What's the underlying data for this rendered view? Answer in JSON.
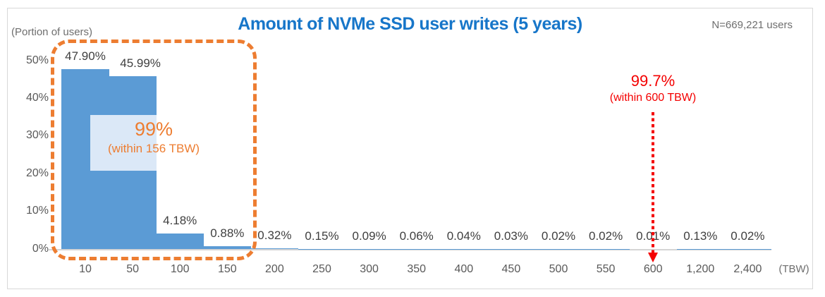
{
  "header": {
    "title": "Amount of NVMe SSD user writes (5 years)",
    "sample_size_label": "N=669,221 users"
  },
  "chart_data": {
    "type": "bar",
    "title": "Amount of NVMe SSD user writes (5 years)",
    "ylabel": "(Portion of users)",
    "xlabel": "(TBW)",
    "ylim": [
      0,
      50
    ],
    "grid": false,
    "legend": "none",
    "ytick_labels": [
      "0%",
      "10%",
      "20%",
      "30%",
      "40%",
      "50%"
    ],
    "categories": [
      "10",
      "50",
      "100",
      "150",
      "200",
      "250",
      "300",
      "350",
      "400",
      "450",
      "500",
      "550",
      "600",
      "1,200",
      "2,400"
    ],
    "values": [
      47.9,
      45.99,
      4.18,
      0.88,
      0.32,
      0.15,
      0.09,
      0.06,
      0.04,
      0.03,
      0.02,
      0.02,
      0.01,
      0.13,
      0.02
    ],
    "value_labels": [
      "47.90%",
      "45.99%",
      "4.18%",
      "0.88%",
      "0.32%",
      "0.15%",
      "0.09%",
      "0.06%",
      "0.04%",
      "0.03%",
      "0.02%",
      "0.02%",
      "0.01%",
      "0.13%",
      "0.02%"
    ],
    "bar_color": "#5b9bd5"
  },
  "annotations": {
    "coverage_156": {
      "headline": "99%",
      "subline": "(within 156 TBW)",
      "color": "#ed7d31"
    },
    "coverage_600": {
      "headline": "99.7%",
      "subline": "(within 600 TBW)",
      "color": "#f40000",
      "target_category": "600"
    }
  },
  "colors": {
    "title_blue": "#1776c9",
    "bar_blue": "#5b9bd5",
    "highlight_backdrop_blue": "#dbe8f7",
    "accent_orange": "#ed7d31",
    "accent_red": "#f40000",
    "axis_gray": "#d5d5d5",
    "text_gray": "#595959"
  }
}
